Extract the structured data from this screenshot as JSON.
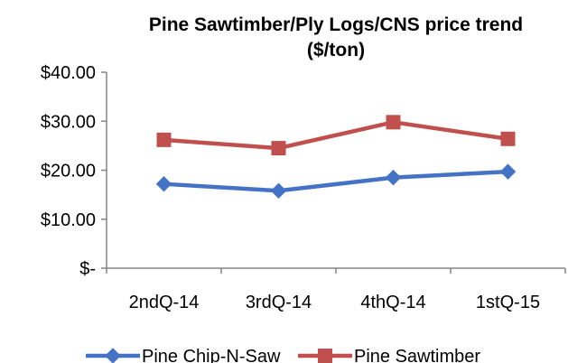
{
  "chart_data": {
    "type": "line",
    "title_line1": "Pine Sawtimber/Ply  Logs/CNS price trend",
    "title_line2": "($/ton)",
    "categories": [
      "2ndQ-14",
      "3rdQ-14",
      "4thQ-14",
      "1stQ-15"
    ],
    "ylim": [
      0,
      40
    ],
    "ytick_labels": [
      "$-",
      "$10.00",
      "$20.00",
      "$30.00",
      "$40.00"
    ],
    "ytick_values": [
      0,
      10,
      20,
      30,
      40
    ],
    "grid": false,
    "legend_position": "bottom",
    "series": [
      {
        "name": "Pine Chip-N-Saw",
        "color": "#4472C4",
        "marker": "diamond",
        "values": [
          17.2,
          15.8,
          18.5,
          19.7
        ]
      },
      {
        "name": "Pine Sawtimber",
        "color": "#C0504D",
        "marker": "square",
        "values": [
          26.2,
          24.5,
          29.8,
          26.4
        ]
      }
    ]
  }
}
